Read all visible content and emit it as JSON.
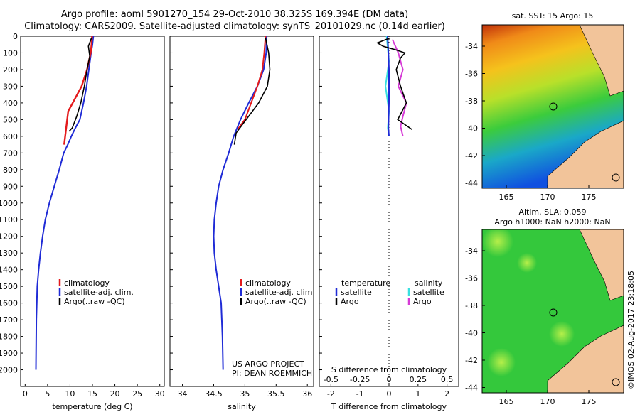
{
  "header": {
    "line1": "Argo profile: aoml 5901270_154 29-Oct-2010 38.325S 169.394E (DM data)",
    "line2": "Climatology: CARS2009. Satellite-adjusted climatology: synTS_20101029.nc (0.14d earlier)"
  },
  "colors": {
    "climatology": "#e41a1c",
    "satellite": "#1f2bd6",
    "argo": "#000000",
    "salinity_sat": "#39e0e0",
    "salinity_argo": "#d63ad6"
  },
  "chart_data": [
    {
      "type": "line",
      "name": "temperature",
      "xlabel": "temperature (deg C)",
      "ylabel": "",
      "xlim": [
        -1,
        31
      ],
      "ylim": [
        2100,
        0
      ],
      "xticks": [
        "0",
        "5",
        "10",
        "15",
        "20",
        "25",
        "30"
      ],
      "yticks": [
        "0",
        "100",
        "200",
        "300",
        "400",
        "500",
        "600",
        "700",
        "800",
        "900",
        "1000",
        "1100",
        "1200",
        "1300",
        "1400",
        "1500",
        "1600",
        "1700",
        "1800",
        "1900",
        "2000"
      ],
      "legend": [
        "climatology",
        "satellite-adj. clim.",
        "Argo(..raw -QC)"
      ],
      "series": [
        {
          "name": "climatology",
          "x": [
            14.9,
            14.8,
            14.6,
            14.2,
            13.8,
            13.2,
            12.6,
            11.6,
            10.6,
            9.6,
            8.7
          ],
          "y": [
            0,
            50,
            100,
            150,
            200,
            250,
            300,
            350,
            400,
            450,
            650
          ]
        },
        {
          "name": "satellite-adj. clim.",
          "x": [
            15.2,
            15.0,
            14.7,
            14.2,
            13.7,
            13.0,
            12.2,
            11.2,
            10.3,
            9.5,
            8.6,
            7.6,
            6.5,
            5.4,
            4.5,
            3.9,
            3.4,
            3.0,
            2.7,
            2.5,
            2.4
          ],
          "y": [
            0,
            50,
            100,
            200,
            300,
            400,
            500,
            550,
            600,
            650,
            700,
            800,
            900,
            1000,
            1100,
            1200,
            1300,
            1400,
            1500,
            1700,
            2000
          ]
        },
        {
          "name": "Argo(..raw -QC)",
          "x": [
            14.8,
            14.1,
            14.4,
            13.8,
            13.2,
            12.4,
            11.5,
            10.5,
            9.8
          ],
          "y": [
            10,
            60,
            120,
            200,
            300,
            400,
            480,
            550,
            570
          ],
          "noisy": true
        }
      ]
    },
    {
      "type": "line",
      "name": "salinity",
      "xlabel": "salinity",
      "xlim": [
        33.8,
        36.1
      ],
      "ylim": [
        2100,
        0
      ],
      "xticks": [
        "34",
        "34.5",
        "35",
        "35.5",
        "36"
      ],
      "legend": [
        "climatology",
        "satellite-adj. clim.",
        "Argo(..raw -QC)"
      ],
      "series": [
        {
          "name": "climatology",
          "x": [
            35.33,
            35.31,
            35.28,
            35.2,
            35.1,
            35.0,
            34.88
          ],
          "y": [
            0,
            100,
            200,
            300,
            400,
            500,
            560
          ]
        },
        {
          "name": "satellite-adj. clim.",
          "x": [
            35.35,
            35.34,
            35.3,
            35.2,
            35.06,
            34.93,
            34.82,
            34.74,
            34.65,
            34.58,
            34.54,
            34.51,
            34.5,
            34.51,
            34.54,
            34.58,
            34.62,
            34.64,
            34.65
          ],
          "y": [
            0,
            100,
            200,
            300,
            400,
            500,
            600,
            700,
            800,
            900,
            1000,
            1100,
            1200,
            1300,
            1400,
            1500,
            1600,
            1800,
            2000
          ]
        },
        {
          "name": "Argo(..raw -QC)",
          "x": [
            35.33,
            35.38,
            35.4,
            35.36,
            35.22,
            35.06,
            34.96,
            34.86,
            34.83
          ],
          "y": [
            10,
            100,
            200,
            300,
            400,
            480,
            530,
            580,
            650
          ],
          "noisy": true
        }
      ],
      "annotations": [
        "US ARGO PROJECT",
        "PI: DEAN ROEMMICH"
      ]
    },
    {
      "type": "line",
      "name": "differences",
      "xlabel": "T difference from climatology",
      "xlabel_top": "S difference from climatology",
      "xlim_T": [
        -2.4,
        2.4
      ],
      "xticks_T": [
        "-2",
        "-1",
        "0",
        "1",
        "2"
      ],
      "xticks_S": [
        "-0.5",
        "-0.25",
        "0",
        "0.25",
        "0.5"
      ],
      "ylim": [
        2100,
        0
      ],
      "legend_headers": [
        "temperature",
        "salinity"
      ],
      "legend": [
        "satellite",
        "Argo",
        "satellite",
        "Argo"
      ],
      "series": [
        {
          "name": "T satellite",
          "x": [
            -0.05,
            -0.02,
            0.0,
            0.0,
            -0.02,
            0.0
          ],
          "y": [
            0,
            100,
            200,
            400,
            550,
            600
          ]
        },
        {
          "name": "T Argo",
          "x": [
            0.05,
            -0.4,
            -0.2,
            0.2,
            0.55,
            0.4,
            0.25,
            0.4,
            0.6,
            0.3,
            0.8
          ],
          "y": [
            10,
            40,
            60,
            80,
            100,
            130,
            200,
            300,
            400,
            500,
            560
          ]
        },
        {
          "name": "S satellite",
          "x": [
            -0.02,
            0.0,
            -0.03,
            0.0,
            -0.01,
            0.0
          ],
          "y": [
            0,
            150,
            300,
            450,
            550,
            600
          ]
        },
        {
          "name": "S Argo",
          "x": [
            0.03,
            0.08,
            0.12,
            0.08,
            0.15,
            0.12,
            0.1,
            0.12
          ],
          "y": [
            20,
            100,
            200,
            300,
            400,
            480,
            540,
            600
          ]
        }
      ]
    }
  ],
  "maps": {
    "top": {
      "title": "sat. SST: 15 Argo: 15",
      "yticks": [
        "-34",
        "-36",
        "-38",
        "-40",
        "-42",
        "-44"
      ],
      "xticks": [
        "165",
        "170",
        "175"
      ]
    },
    "bottom": {
      "title1": "Altim. SLA: 0.059",
      "title2": "Argo h1000: NaN h2000: NaN",
      "yticks": [
        "-34",
        "-36",
        "-38",
        "-40",
        "-42",
        "-44"
      ],
      "xticks": [
        "165",
        "170",
        "175"
      ]
    }
  },
  "footer": {
    "stamp": "©IMOS 02-Aug-2017 23:18:05"
  }
}
